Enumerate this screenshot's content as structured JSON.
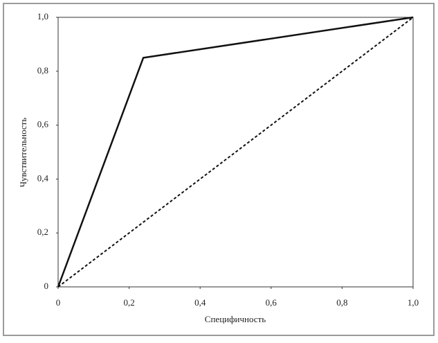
{
  "chart_data": {
    "type": "line",
    "xlabel": "Специфичность",
    "ylabel": "Чувствительность",
    "xlim": [
      0,
      1
    ],
    "ylim": [
      0,
      1
    ],
    "xticks": [
      0,
      {
        "value": 0.2,
        "label": "0,2"
      },
      {
        "value": 0.4,
        "label": "0,4"
      },
      {
        "value": 0.6,
        "label": "0,6"
      },
      {
        "value": 0.8,
        "label": "0,8"
      },
      {
        "value": 1,
        "label": "1,0"
      }
    ],
    "yticks": [
      0,
      {
        "value": 0.2,
        "label": "0,2"
      },
      {
        "value": 0.4,
        "label": "0,4"
      },
      {
        "value": 0.6,
        "label": "0,6"
      },
      {
        "value": 0.8,
        "label": "0,8"
      },
      {
        "value": 1,
        "label": "1,0"
      }
    ],
    "grid": false,
    "series": [
      {
        "color": "#111111",
        "line_style": "solid",
        "x": [
          0,
          0.24,
          1
        ],
        "values": [
          0,
          0.85,
          1
        ]
      },
      {
        "color": "#111111",
        "line_style": "dashed",
        "x": [
          0,
          1
        ],
        "values": [
          0,
          1
        ]
      }
    ]
  }
}
